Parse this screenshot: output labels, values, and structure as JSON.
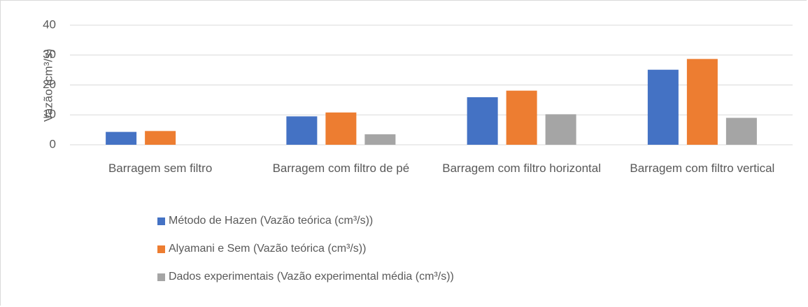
{
  "chart_data": {
    "type": "bar",
    "ylabel": "Vazão (cm³/s)",
    "categories": [
      "Barragem sem filtro",
      "Barragem com filtro de pé",
      "Barragem com filtro horizontal",
      "Barragem com filtro vertical"
    ],
    "series": [
      {
        "name": "Método de Hazen (Vazão teórica (cm³/s))",
        "color": "#4472c4",
        "values": [
          4.3,
          9.5,
          15.9,
          25.1
        ]
      },
      {
        "name": "Alyamani e Sem (Vazão teórica (cm³/s))",
        "color": "#ed7d31",
        "values": [
          4.6,
          10.8,
          18.1,
          28.7
        ]
      },
      {
        "name": "Dados experimentais (Vazão experimental média (cm³/s))",
        "color": "#a5a5a5",
        "values": [
          0,
          3.5,
          10.2,
          9.0
        ]
      }
    ],
    "ylim": [
      0,
      40
    ],
    "yticks": [
      0,
      10,
      20,
      30,
      40
    ],
    "grid": true
  }
}
